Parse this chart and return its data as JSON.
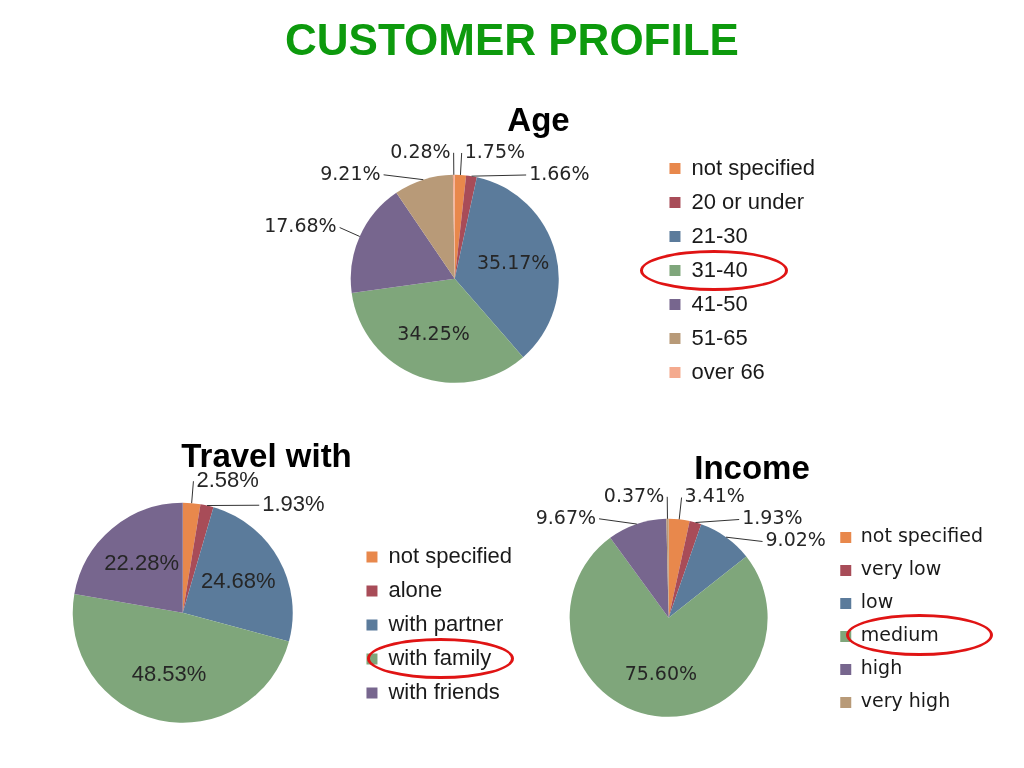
{
  "chart_data": [
    {
      "type": "other",
      "title": "CUSTOMER PROFILE"
    },
    {
      "type": "pie",
      "title": "Age",
      "categories": [
        "not specified",
        "20 or under",
        "21-30",
        "31-40",
        "41-50",
        "51-65",
        "over 66"
      ],
      "values": [
        1.75,
        1.66,
        35.17,
        34.25,
        17.68,
        9.21,
        0.28
      ],
      "value_labels": [
        "1.75%",
        "1.66%",
        "35.17%",
        "34.25%",
        "17.68%",
        "9.21%",
        "0.28%"
      ],
      "colors": [
        "#e8884c",
        "#a84c58",
        "#5b7b9b",
        "#7fa67b",
        "#77668e",
        "#b89a78",
        "#f4aa8e"
      ],
      "legend": "right"
    },
    {
      "type": "pie",
      "title": "Travel with",
      "categories": [
        "not specified",
        "alone",
        "with partner",
        "with family",
        "with friends"
      ],
      "values": [
        2.58,
        1.93,
        24.68,
        48.53,
        22.28
      ],
      "value_labels": [
        "2.58%",
        "1.93%",
        "24.68%",
        "48.53%",
        "22.28%"
      ],
      "colors": [
        "#e8884c",
        "#a84c58",
        "#5b7b9b",
        "#7fa67b",
        "#77668e"
      ],
      "legend": "right"
    },
    {
      "type": "pie",
      "title": "Income",
      "categories": [
        "not specified",
        "very low",
        "low",
        "medium",
        "high",
        "very high"
      ],
      "values": [
        3.41,
        1.93,
        9.02,
        75.6,
        9.67,
        0.37
      ],
      "value_labels": [
        "3.41%",
        "1.93%",
        "9.02%",
        "75.60%",
        "9.67%",
        "0.37%"
      ],
      "colors": [
        "#e8884c",
        "#a84c58",
        "#5b7b9b",
        "#7fa67b",
        "#77668e",
        "#b89a78"
      ],
      "legend": "right"
    }
  ]
}
